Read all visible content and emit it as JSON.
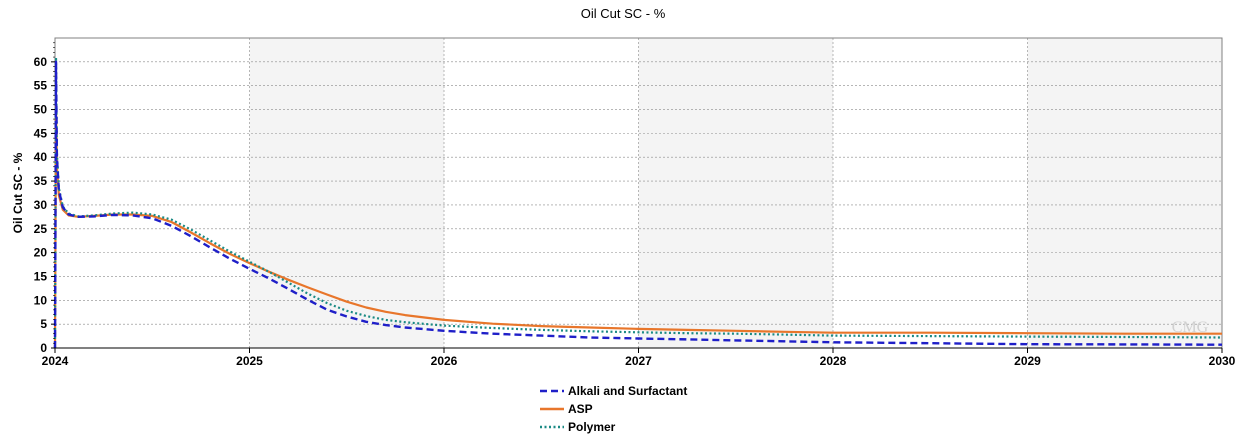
{
  "chart_data": {
    "type": "line",
    "title": "Oil Cut SC - %",
    "xlabel": "",
    "ylabel": "Oil Cut SC - %",
    "xlim": [
      2024,
      2030
    ],
    "ylim": [
      0,
      65
    ],
    "x_ticks": [
      "2024",
      "2025",
      "2026",
      "2027",
      "2028",
      "2029",
      "2030"
    ],
    "y_ticks": [
      "0",
      "5",
      "10",
      "15",
      "20",
      "25",
      "30",
      "35",
      "40",
      "45",
      "50",
      "55",
      "60"
    ],
    "grid": true,
    "legend_position": "bottom-center",
    "watermark": "CMG",
    "series": [
      {
        "name": "Alkali and Surfactant",
        "color": "#1f1fc8",
        "dash": "dashed",
        "x": [
          2024.0,
          2024.005,
          2024.01,
          2024.02,
          2024.04,
          2024.07,
          2024.12,
          2024.2,
          2024.3,
          2024.4,
          2024.5,
          2024.6,
          2024.7,
          2024.8,
          2024.9,
          2025.0,
          2025.1,
          2025.2,
          2025.3,
          2025.4,
          2025.5,
          2025.6,
          2025.7,
          2025.8,
          2026.0,
          2026.25,
          2026.5,
          2026.75,
          2027.0,
          2027.25,
          2027.5,
          2027.75,
          2028.0,
          2028.5,
          2029.0,
          2029.5,
          2030.0
        ],
        "y": [
          0,
          60,
          40,
          33,
          29.5,
          28,
          27.5,
          27.6,
          27.9,
          27.8,
          27.2,
          25.6,
          23.4,
          21.0,
          18.7,
          16.6,
          14.6,
          12.4,
          10.1,
          8.0,
          6.6,
          5.5,
          4.8,
          4.3,
          3.6,
          3.0,
          2.6,
          2.2,
          2.0,
          1.8,
          1.6,
          1.4,
          1.2,
          1.0,
          0.8,
          0.75,
          0.7
        ]
      },
      {
        "name": "ASP",
        "color": "#e8762b",
        "dash": "solid",
        "x": [
          2024.0,
          2024.005,
          2024.01,
          2024.02,
          2024.04,
          2024.07,
          2024.12,
          2024.2,
          2024.3,
          2024.4,
          2024.5,
          2024.6,
          2024.7,
          2024.8,
          2024.9,
          2025.0,
          2025.1,
          2025.2,
          2025.3,
          2025.4,
          2025.5,
          2025.6,
          2025.7,
          2025.8,
          2026.0,
          2026.25,
          2026.5,
          2026.75,
          2027.0,
          2027.25,
          2027.5,
          2027.75,
          2028.0,
          2028.5,
          2029.0,
          2029.5,
          2030.0
        ],
        "y": [
          0,
          51,
          38,
          32,
          29,
          27.8,
          27.5,
          27.7,
          28.0,
          28.0,
          27.7,
          26.4,
          24.2,
          21.9,
          19.7,
          17.8,
          16.0,
          14.3,
          12.7,
          11.2,
          9.7,
          8.5,
          7.6,
          6.9,
          5.9,
          5.1,
          4.6,
          4.3,
          4.0,
          3.8,
          3.6,
          3.4,
          3.2,
          3.2,
          3.1,
          3.0,
          3.0
        ]
      },
      {
        "name": "Polymer",
        "color": "#1a8a84",
        "dash": "dotted",
        "x": [
          2024.0,
          2024.005,
          2024.01,
          2024.02,
          2024.04,
          2024.07,
          2024.12,
          2024.2,
          2024.3,
          2024.4,
          2024.5,
          2024.6,
          2024.7,
          2024.8,
          2024.9,
          2025.0,
          2025.1,
          2025.2,
          2025.3,
          2025.4,
          2025.5,
          2025.6,
          2025.7,
          2025.8,
          2026.0,
          2026.25,
          2026.5,
          2026.75,
          2027.0,
          2027.25,
          2027.5,
          2027.75,
          2028.0,
          2028.5,
          2029.0,
          2029.5,
          2030.0
        ],
        "y": [
          0,
          61,
          41,
          33.5,
          29.7,
          28.2,
          27.6,
          27.8,
          28.2,
          28.4,
          28.0,
          26.9,
          24.8,
          22.5,
          20.2,
          18.1,
          16.0,
          13.7,
          11.4,
          9.4,
          7.8,
          6.7,
          5.9,
          5.4,
          4.7,
          4.2,
          3.8,
          3.5,
          3.3,
          3.1,
          3.0,
          2.8,
          2.6,
          2.5,
          2.4,
          2.3,
          2.2
        ]
      }
    ]
  }
}
